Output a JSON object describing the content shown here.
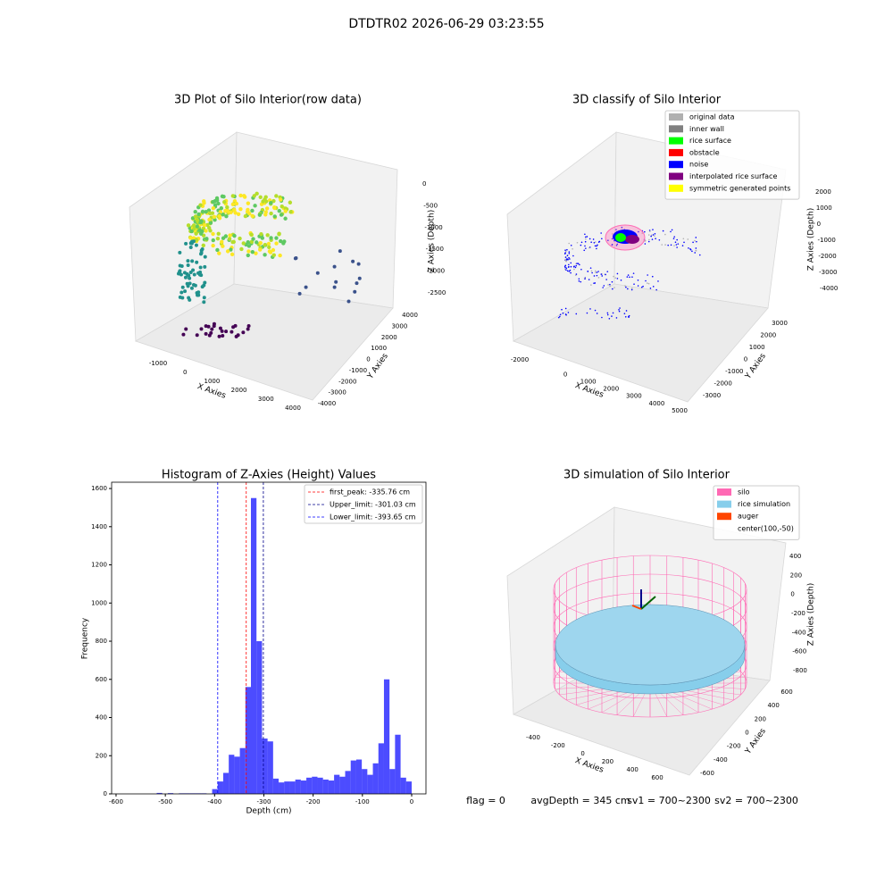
{
  "header": {
    "title": "DTDTR02 2026-06-29 03:23:55"
  },
  "chart_data": [
    {
      "type": "scatter3d",
      "title": "3D Plot of Silo Interior(row data)",
      "xlabel": "X Axies",
      "ylabel": "Y Axies",
      "zlabel": "Z Axies (Depth)",
      "xticks": [
        -1000,
        0,
        1000,
        2000,
        3000,
        4000
      ],
      "yticks": [
        4000,
        3000,
        2000,
        1000,
        0,
        -1000,
        -2000,
        -3000,
        -4000
      ],
      "zticks": [
        0,
        -500,
        -1000,
        -1500,
        -2000,
        -2500
      ]
    },
    {
      "type": "scatter3d",
      "title": "3D classify of Silo Interior",
      "xlabel": "X Axies",
      "ylabel": "Y Axies",
      "zlabel": "Z Axies (Depth)",
      "xticks": [
        -2000,
        0,
        1000,
        2000,
        3000,
        4000,
        5000
      ],
      "yticks": [
        3000,
        2000,
        1000,
        0,
        -1000,
        -2000,
        -3000
      ],
      "zticks": [
        2000,
        1000,
        0,
        -1000,
        -2000,
        -3000,
        -4000
      ],
      "legend": [
        {
          "name": "original data",
          "color": "#b0b0b0"
        },
        {
          "name": "inner wall",
          "color": "#808080"
        },
        {
          "name": "rice surface",
          "color": "#00ff00"
        },
        {
          "name": "obstacle",
          "color": "#ff0000"
        },
        {
          "name": "noise",
          "color": "#0000ff"
        },
        {
          "name": "interpolated rice surface",
          "color": "#800080"
        },
        {
          "name": "symmetric generated points",
          "color": "#ffff00"
        }
      ]
    },
    {
      "type": "histogram",
      "title": "Histogram of Z-Axies (Height) Values",
      "xlabel": "Depth (cm)",
      "ylabel": "Frequency",
      "color": "#0000ff",
      "alpha": 0.7,
      "bins": [
        -540,
        -528.75,
        -517.5,
        -506.25,
        -495,
        -483.75,
        -472.5,
        -461.25,
        -450,
        -438.75,
        -427.5,
        -416.25,
        -405,
        -393.75,
        -382.5,
        -371.25,
        -360,
        -348.75,
        -337.5,
        -326.25,
        -315,
        -303.75,
        -292.5,
        -281.25,
        -270,
        -258.75,
        -247.5,
        -236.25,
        -225,
        -213.75,
        -202.5,
        -191.25,
        -180,
        -168.75,
        -157.5,
        -146.25,
        -135,
        -123.75,
        -112.5,
        -101.25,
        -90,
        -78.75,
        -67.5,
        -56.25,
        -45,
        -33.75,
        -22.5,
        -11.25,
        0
      ],
      "values": [
        0,
        0,
        5,
        0,
        4,
        0,
        3,
        3,
        3,
        3,
        3,
        0,
        25,
        65,
        110,
        205,
        195,
        240,
        560,
        1550,
        800,
        290,
        275,
        80,
        60,
        65,
        65,
        75,
        70,
        85,
        90,
        85,
        75,
        70,
        100,
        90,
        120,
        175,
        180,
        130,
        100,
        160,
        265,
        600,
        130,
        310,
        85,
        65
      ],
      "xlim": [
        -609,
        29
      ],
      "ylim": [
        0,
        1633
      ],
      "xticks": [
        -600,
        -500,
        -400,
        -300,
        -200,
        -100,
        0
      ],
      "yticks": [
        0,
        200,
        400,
        600,
        800,
        1000,
        1200,
        1400,
        1600
      ],
      "reference_lines": [
        {
          "label": "first_peak: -335.76 cm",
          "value": -335.76,
          "color": "#ff0000"
        },
        {
          "label": "Upper_limit: -301.03 cm",
          "value": -301.03,
          "color": "#00008b"
        },
        {
          "label": "Lower_limit: -393.65 cm",
          "value": -393.65,
          "color": "#0000ff"
        }
      ],
      "legend_position": "upper right"
    },
    {
      "type": "surface3d",
      "title": "3D simulation of Silo Interior",
      "xlabel": "X Axies",
      "ylabel": "Y Axies",
      "zlabel": "Z Axies (Depth)",
      "xticks": [
        -400,
        -200,
        0,
        200,
        400,
        600
      ],
      "yticks": [
        600,
        400,
        200,
        0,
        -200,
        -400,
        -600
      ],
      "zticks": [
        400,
        200,
        0,
        -200,
        -400,
        -600,
        -800
      ],
      "legend": [
        {
          "name": "silo",
          "color": "#ff69b4"
        },
        {
          "name": "rice simulation",
          "color": "#87ceeb"
        },
        {
          "name": "auger",
          "color": "#ff4500"
        },
        {
          "name": "center(100,-50)",
          "color": null
        }
      ]
    }
  ],
  "footer": {
    "flag": "flag = 0",
    "avg": "avgDepth = 345 cm",
    "sv1": "sv1 = 700~2300",
    "sv2": "sv2 = 700~2300"
  }
}
